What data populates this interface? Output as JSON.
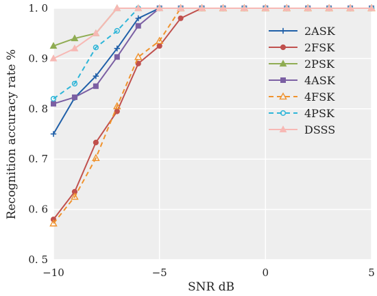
{
  "chart_data": {
    "type": "line",
    "title": "",
    "xlabel": "SNR  dB",
    "ylabel": "Recognition accuracy rate  %",
    "xlim": [
      -10,
      5
    ],
    "ylim": [
      0.5,
      1.0
    ],
    "xticks": [
      -10,
      -5,
      0,
      5
    ],
    "yticks": [
      0.5,
      0.6,
      0.7,
      0.8,
      0.9,
      1.0
    ],
    "xtick_labels": [
      "−10",
      "−5",
      "0",
      "5"
    ],
    "ytick_labels": [
      "0. 5",
      "0. 6",
      "0. 7",
      "0. 8",
      "0. 9",
      "1. 0"
    ],
    "grid": true,
    "legend_position": "top-right",
    "background": "#eeeeee",
    "x": [
      -10,
      -9,
      -8,
      -7,
      -6,
      -5,
      -4,
      -3,
      -2,
      -1,
      0,
      1,
      2,
      3,
      4,
      5
    ],
    "series": [
      {
        "name": "2ASK",
        "color": "#1f5fa8",
        "marker": "plus",
        "dash": "solid",
        "values": [
          0.75,
          0.822,
          0.865,
          0.92,
          0.98,
          1.0,
          1.0,
          1.0,
          1.0,
          1.0,
          1.0,
          1.0,
          1.0,
          1.0,
          1.0,
          1.0
        ]
      },
      {
        "name": "2FSK",
        "color": "#c0504d",
        "marker": "circle",
        "dash": "solid",
        "values": [
          0.58,
          0.635,
          0.733,
          0.795,
          0.89,
          0.925,
          0.98,
          1.0,
          1.0,
          1.0,
          1.0,
          1.0,
          1.0,
          1.0,
          1.0,
          1.0
        ]
      },
      {
        "name": "2PSK",
        "color": "#8fac52",
        "marker": "triangle",
        "dash": "solid",
        "values": [
          0.925,
          0.94,
          0.95,
          1.0,
          1.0,
          1.0,
          1.0,
          1.0,
          1.0,
          1.0,
          1.0,
          1.0,
          1.0,
          1.0,
          1.0,
          1.0
        ]
      },
      {
        "name": "4ASK",
        "color": "#7b5fa3",
        "marker": "square",
        "dash": "solid",
        "values": [
          0.81,
          0.823,
          0.845,
          0.903,
          0.965,
          1.0,
          1.0,
          1.0,
          1.0,
          1.0,
          1.0,
          1.0,
          1.0,
          1.0,
          1.0,
          1.0
        ]
      },
      {
        "name": "4FSK",
        "color": "#f0922c",
        "marker": "triangle-open",
        "dash": "dashed",
        "values": [
          0.572,
          0.625,
          0.702,
          0.805,
          0.903,
          0.935,
          1.0,
          1.0,
          1.0,
          1.0,
          1.0,
          1.0,
          1.0,
          1.0,
          1.0,
          1.0
        ]
      },
      {
        "name": "4PSK",
        "color": "#2db5d8",
        "marker": "circle-open",
        "dash": "dashed",
        "values": [
          0.82,
          0.85,
          0.922,
          0.955,
          1.0,
          1.0,
          1.0,
          1.0,
          1.0,
          1.0,
          1.0,
          1.0,
          1.0,
          1.0,
          1.0,
          1.0
        ]
      },
      {
        "name": "DSSS",
        "color": "#f7b8b4",
        "marker": "triangle",
        "dash": "solid",
        "values": [
          0.9,
          0.92,
          0.95,
          1.0,
          1.0,
          1.0,
          1.0,
          1.0,
          1.0,
          1.0,
          1.0,
          1.0,
          1.0,
          1.0,
          1.0,
          1.0
        ]
      }
    ]
  }
}
